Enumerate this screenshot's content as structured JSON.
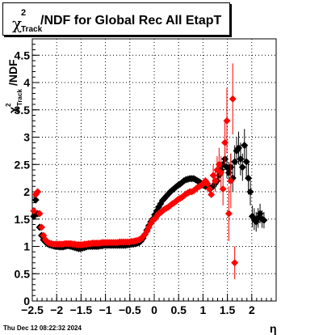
{
  "title": {
    "symbol": "χ",
    "superscript": "2",
    "subscript": "Track",
    "text": "/NDF for Global Rec All EtapT"
  },
  "timestamp": "Thu Dec 12 08:22:32 2024",
  "chart_data": {
    "type": "scatter",
    "title": "χ²_Track/NDF for Global Rec All EtapT",
    "xlabel": "η",
    "ylabel": "χ²_Track/NDF",
    "xlim": [
      -2.5,
      2.5
    ],
    "ylim": [
      0,
      4.8
    ],
    "x_ticks": [
      "−2.5",
      "−2",
      "−1.5",
      "−1",
      "−0.5",
      "0",
      "0.5",
      "1",
      "1.5",
      "2"
    ],
    "x_tick_values": [
      -2.5,
      -2,
      -1.5,
      -1,
      -0.5,
      0,
      0.5,
      1,
      1.5,
      2
    ],
    "y_ticks": [
      "0",
      "0.5",
      "1",
      "1.5",
      "2",
      "2.5",
      "3",
      "3.5",
      "4",
      "4.5"
    ],
    "y_tick_values": [
      0,
      0.5,
      1,
      1.5,
      2,
      2.5,
      3,
      3.5,
      4,
      4.5
    ],
    "grid": true,
    "series": [
      {
        "color": "#000000",
        "points": [
          [
            -2.47,
            1.55
          ],
          [
            -2.43,
            1.85
          ],
          [
            -2.39,
            1.6
          ],
          [
            -2.35,
            1.35
          ],
          [
            -2.31,
            1.2
          ],
          [
            -2.27,
            1.12
          ],
          [
            -2.23,
            1.08
          ],
          [
            -2.19,
            1.05
          ],
          [
            -2.15,
            1.03
          ],
          [
            -2.11,
            1.02
          ],
          [
            -2.07,
            1.01
          ],
          [
            -2.03,
            1.0
          ],
          [
            -1.99,
            1.0
          ],
          [
            -1.95,
            0.99
          ],
          [
            -1.91,
            0.99
          ],
          [
            -1.87,
            0.99
          ],
          [
            -1.83,
            1.0
          ],
          [
            -1.79,
            1.01
          ],
          [
            -1.75,
            1.01
          ],
          [
            -1.71,
            1.0
          ],
          [
            -1.67,
            0.99
          ],
          [
            -1.63,
            0.98
          ],
          [
            -1.59,
            0.97
          ],
          [
            -1.55,
            0.96
          ],
          [
            -1.51,
            0.96
          ],
          [
            -1.47,
            0.97
          ],
          [
            -1.43,
            0.98
          ],
          [
            -1.39,
            0.99
          ],
          [
            -1.35,
            1.0
          ],
          [
            -1.31,
            1.0
          ],
          [
            -1.27,
            1.0
          ],
          [
            -1.23,
            1.0
          ],
          [
            -1.19,
            1.0
          ],
          [
            -1.15,
            1.0
          ],
          [
            -1.11,
            1.01
          ],
          [
            -1.07,
            1.01
          ],
          [
            -1.03,
            1.02
          ],
          [
            -0.99,
            1.02
          ],
          [
            -0.95,
            1.02
          ],
          [
            -0.91,
            1.02
          ],
          [
            -0.87,
            1.02
          ],
          [
            -0.83,
            1.02
          ],
          [
            -0.79,
            1.02
          ],
          [
            -0.75,
            1.02
          ],
          [
            -0.71,
            1.02
          ],
          [
            -0.67,
            1.02
          ],
          [
            -0.63,
            1.02
          ],
          [
            -0.59,
            1.02
          ],
          [
            -0.55,
            1.03
          ],
          [
            -0.51,
            1.03
          ],
          [
            -0.47,
            1.04
          ],
          [
            -0.43,
            1.04
          ],
          [
            -0.39,
            1.05
          ],
          [
            -0.35,
            1.06
          ],
          [
            -0.31,
            1.07
          ],
          [
            -0.27,
            1.1
          ],
          [
            -0.23,
            1.15
          ],
          [
            -0.19,
            1.22
          ],
          [
            -0.15,
            1.3
          ],
          [
            -0.11,
            1.38
          ],
          [
            -0.07,
            1.45
          ],
          [
            -0.03,
            1.5
          ],
          [
            0.01,
            1.58
          ],
          [
            0.05,
            1.65
          ],
          [
            0.09,
            1.72
          ],
          [
            0.13,
            1.78
          ],
          [
            0.17,
            1.84
          ],
          [
            0.21,
            1.88
          ],
          [
            0.25,
            1.92
          ],
          [
            0.29,
            1.96
          ],
          [
            0.33,
            2.0
          ],
          [
            0.37,
            2.03
          ],
          [
            0.41,
            2.06
          ],
          [
            0.45,
            2.09
          ],
          [
            0.49,
            2.12
          ],
          [
            0.53,
            2.14
          ],
          [
            0.57,
            2.17
          ],
          [
            0.61,
            2.2
          ],
          [
            0.65,
            2.22
          ],
          [
            0.69,
            2.23
          ],
          [
            0.73,
            2.24
          ],
          [
            0.77,
            2.24
          ],
          [
            0.81,
            2.24
          ],
          [
            0.85,
            2.22
          ],
          [
            0.89,
            2.2
          ],
          [
            0.93,
            2.18
          ],
          [
            0.97,
            2.15
          ],
          [
            1.01,
            2.12
          ],
          [
            1.05,
            2.1
          ],
          [
            1.09,
            2.1
          ],
          [
            1.13,
            2.08
          ],
          [
            1.17,
            2.07
          ],
          [
            1.21,
            2.1
          ],
          [
            1.25,
            2.15
          ],
          [
            1.29,
            2.2
          ],
          [
            1.33,
            2.3
          ],
          [
            1.37,
            2.4
          ],
          [
            1.41,
            2.5
          ],
          [
            1.45,
            2.6
          ],
          [
            1.49,
            2.45
          ],
          [
            1.53,
            2.35
          ],
          [
            1.57,
            2.45
          ],
          [
            1.61,
            2.25
          ],
          [
            1.65,
            2.55
          ],
          [
            1.69,
            2.75
          ],
          [
            1.73,
            2.8
          ],
          [
            1.77,
            2.6
          ],
          [
            1.81,
            2.45
          ],
          [
            1.85,
            2.85
          ],
          [
            1.89,
            2.55
          ],
          [
            1.93,
            2.25
          ],
          [
            1.97,
            2.0
          ],
          [
            2.01,
            1.55
          ],
          [
            2.05,
            1.5
          ],
          [
            2.09,
            1.45
          ],
          [
            2.13,
            1.52
          ],
          [
            2.17,
            1.6
          ],
          [
            2.21,
            1.5
          ],
          [
            2.25,
            1.48
          ]
        ],
        "errors": [
          [
            1.45,
            0.2
          ],
          [
            1.49,
            0.2
          ],
          [
            1.53,
            0.2
          ],
          [
            1.57,
            0.25
          ],
          [
            1.61,
            0.25
          ],
          [
            1.65,
            0.3
          ],
          [
            1.69,
            0.25
          ],
          [
            1.73,
            0.3
          ],
          [
            1.77,
            0.3
          ],
          [
            1.81,
            0.25
          ],
          [
            1.85,
            0.3
          ],
          [
            1.89,
            0.3
          ],
          [
            1.93,
            0.3
          ],
          [
            1.97,
            0.25
          ],
          [
            2.01,
            0.2
          ],
          [
            2.05,
            0.2
          ],
          [
            2.09,
            0.18
          ],
          [
            2.13,
            0.18
          ],
          [
            2.17,
            0.18
          ],
          [
            2.21,
            0.16
          ],
          [
            2.25,
            0.15
          ]
        ]
      },
      {
        "color": "#ff0000",
        "points": [
          [
            -2.47,
            1.65
          ],
          [
            -2.43,
            1.95
          ],
          [
            -2.39,
            2.0
          ],
          [
            -2.35,
            1.6
          ],
          [
            -2.31,
            1.35
          ],
          [
            -2.27,
            1.2
          ],
          [
            -2.23,
            1.12
          ],
          [
            -2.19,
            1.08
          ],
          [
            -2.15,
            1.06
          ],
          [
            -2.11,
            1.05
          ],
          [
            -2.07,
            1.04
          ],
          [
            -2.03,
            1.04
          ],
          [
            -1.99,
            1.04
          ],
          [
            -1.95,
            1.04
          ],
          [
            -1.91,
            1.04
          ],
          [
            -1.87,
            1.04
          ],
          [
            -1.83,
            1.05
          ],
          [
            -1.79,
            1.05
          ],
          [
            -1.75,
            1.05
          ],
          [
            -1.71,
            1.05
          ],
          [
            -1.67,
            1.04
          ],
          [
            -1.63,
            1.04
          ],
          [
            -1.59,
            1.03
          ],
          [
            -1.55,
            1.03
          ],
          [
            -1.51,
            1.03
          ],
          [
            -1.47,
            1.03
          ],
          [
            -1.43,
            1.04
          ],
          [
            -1.39,
            1.04
          ],
          [
            -1.35,
            1.05
          ],
          [
            -1.31,
            1.05
          ],
          [
            -1.27,
            1.06
          ],
          [
            -1.23,
            1.06
          ],
          [
            -1.19,
            1.06
          ],
          [
            -1.15,
            1.06
          ],
          [
            -1.11,
            1.06
          ],
          [
            -1.07,
            1.07
          ],
          [
            -1.03,
            1.07
          ],
          [
            -0.99,
            1.07
          ],
          [
            -0.95,
            1.07
          ],
          [
            -0.91,
            1.07
          ],
          [
            -0.87,
            1.07
          ],
          [
            -0.83,
            1.07
          ],
          [
            -0.79,
            1.07
          ],
          [
            -0.75,
            1.07
          ],
          [
            -0.71,
            1.08
          ],
          [
            -0.67,
            1.08
          ],
          [
            -0.63,
            1.08
          ],
          [
            -0.59,
            1.08
          ],
          [
            -0.55,
            1.08
          ],
          [
            -0.51,
            1.08
          ],
          [
            -0.47,
            1.09
          ],
          [
            -0.43,
            1.09
          ],
          [
            -0.39,
            1.1
          ],
          [
            -0.35,
            1.11
          ],
          [
            -0.31,
            1.12
          ],
          [
            -0.27,
            1.14
          ],
          [
            -0.23,
            1.18
          ],
          [
            -0.19,
            1.22
          ],
          [
            -0.15,
            1.28
          ],
          [
            -0.11,
            1.35
          ],
          [
            -0.07,
            1.42
          ],
          [
            -0.03,
            1.48
          ],
          [
            0.01,
            1.5
          ],
          [
            0.05,
            1.55
          ],
          [
            0.09,
            1.6
          ],
          [
            0.13,
            1.62
          ],
          [
            0.17,
            1.65
          ],
          [
            0.21,
            1.68
          ],
          [
            0.25,
            1.7
          ],
          [
            0.29,
            1.72
          ],
          [
            0.33,
            1.75
          ],
          [
            0.37,
            1.78
          ],
          [
            0.41,
            1.8
          ],
          [
            0.45,
            1.83
          ],
          [
            0.49,
            1.86
          ],
          [
            0.53,
            1.88
          ],
          [
            0.57,
            1.9
          ],
          [
            0.61,
            1.93
          ],
          [
            0.65,
            1.96
          ],
          [
            0.69,
            1.98
          ],
          [
            0.73,
            2.0
          ],
          [
            0.77,
            2.0
          ],
          [
            0.81,
            2.02
          ],
          [
            0.85,
            2.05
          ],
          [
            0.89,
            2.08
          ],
          [
            0.93,
            2.1
          ],
          [
            0.97,
            2.12
          ],
          [
            1.01,
            2.15
          ],
          [
            1.05,
            2.2
          ],
          [
            1.09,
            2.15
          ],
          [
            1.13,
            2.05
          ],
          [
            1.17,
            1.95
          ],
          [
            1.21,
            2.3
          ],
          [
            1.25,
            2.2
          ],
          [
            1.29,
            2.4
          ],
          [
            1.33,
            2.5
          ],
          [
            1.37,
            2.35
          ],
          [
            1.41,
            2.05
          ],
          [
            1.45,
            2.9
          ],
          [
            1.49,
            3.3
          ],
          [
            1.53,
            1.6
          ],
          [
            1.57,
            2.2
          ],
          [
            1.61,
            3.7
          ],
          [
            1.65,
            0.7
          ]
        ],
        "errors": [
          [
            1.21,
            0.2
          ],
          [
            1.25,
            0.2
          ],
          [
            1.29,
            0.25
          ],
          [
            1.33,
            0.3
          ],
          [
            1.37,
            0.3
          ],
          [
            1.41,
            0.3
          ],
          [
            1.45,
            0.4
          ],
          [
            1.49,
            0.6
          ],
          [
            1.53,
            0.5
          ],
          [
            1.57,
            0.5
          ],
          [
            1.61,
            0.65
          ],
          [
            1.65,
            0.3
          ]
        ]
      }
    ]
  }
}
